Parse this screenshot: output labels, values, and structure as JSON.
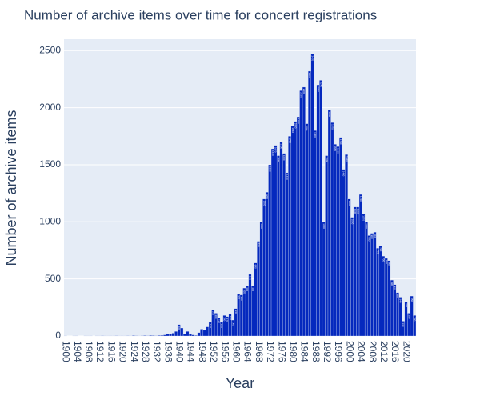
{
  "chart_data": {
    "type": "bar",
    "title": "Number of archive items over time for concert registrations",
    "x_label": "Year",
    "y_label": "Number of archive items",
    "color": "#0529be",
    "grid": true,
    "x": [
      1900,
      1901,
      1902,
      1903,
      1904,
      1905,
      1906,
      1907,
      1908,
      1909,
      1910,
      1911,
      1912,
      1913,
      1914,
      1915,
      1916,
      1917,
      1918,
      1919,
      1920,
      1921,
      1922,
      1923,
      1924,
      1925,
      1926,
      1927,
      1928,
      1929,
      1930,
      1931,
      1932,
      1933,
      1934,
      1935,
      1936,
      1937,
      1938,
      1939,
      1940,
      1941,
      1942,
      1943,
      1944,
      1945,
      1946,
      1947,
      1948,
      1949,
      1950,
      1951,
      1952,
      1953,
      1954,
      1955,
      1956,
      1957,
      1958,
      1959,
      1960,
      1961,
      1962,
      1963,
      1964,
      1965,
      1966,
      1967,
      1968,
      1969,
      1970,
      1971,
      1972,
      1973,
      1974,
      1975,
      1976,
      1977,
      1978,
      1979,
      1980,
      1981,
      1982,
      1983,
      1984,
      1985,
      1986,
      1987,
      1988,
      1989,
      1990,
      1991,
      1992,
      1993,
      1994,
      1995,
      1996,
      1997,
      1998,
      1999,
      2000,
      2001,
      2002,
      2003,
      2004,
      2005,
      2006,
      2007,
      2008,
      2009,
      2010,
      2011,
      2012,
      2013,
      2014,
      2015,
      2016,
      2017,
      2018,
      2019,
      2020,
      2021,
      2022,
      2023
    ],
    "values": [
      1,
      0,
      0,
      2,
      1,
      0,
      0,
      1,
      2,
      1,
      0,
      1,
      2,
      3,
      1,
      2,
      1,
      2,
      3,
      2,
      1,
      2,
      3,
      2,
      4,
      3,
      2,
      3,
      4,
      3,
      5,
      4,
      3,
      5,
      6,
      10,
      15,
      20,
      25,
      40,
      100,
      70,
      20,
      40,
      20,
      10,
      5,
      30,
      60,
      50,
      80,
      120,
      230,
      200,
      160,
      120,
      180,
      170,
      190,
      140,
      240,
      370,
      360,
      420,
      440,
      540,
      440,
      640,
      830,
      1000,
      1200,
      1260,
      1500,
      1640,
      1670,
      1580,
      1700,
      1600,
      1430,
      1750,
      1840,
      1880,
      1920,
      2150,
      2180,
      1860,
      2320,
      2470,
      1800,
      2200,
      2240,
      1000,
      1580,
      1980,
      1870,
      1680,
      1660,
      1740,
      1460,
      1590,
      1200,
      1040,
      1130,
      1130,
      1240,
      1070,
      1000,
      880,
      900,
      910,
      770,
      790,
      700,
      680,
      660,
      490,
      450,
      380,
      340,
      130,
      300,
      200,
      350,
      180
    ],
    "xlim": [
      1899.5,
      2023.5
    ],
    "xticks": [
      1900,
      1904,
      1908,
      1912,
      1916,
      1920,
      1924,
      1928,
      1932,
      1936,
      1940,
      1944,
      1948,
      1952,
      1956,
      1960,
      1964,
      1968,
      1972,
      1976,
      1980,
      1984,
      1988,
      1992,
      1996,
      2000,
      2004,
      2008,
      2012,
      2016,
      2020
    ],
    "ylim": [
      0,
      2600
    ],
    "yticks": [
      0,
      500,
      1000,
      1500,
      2000,
      2500
    ]
  }
}
